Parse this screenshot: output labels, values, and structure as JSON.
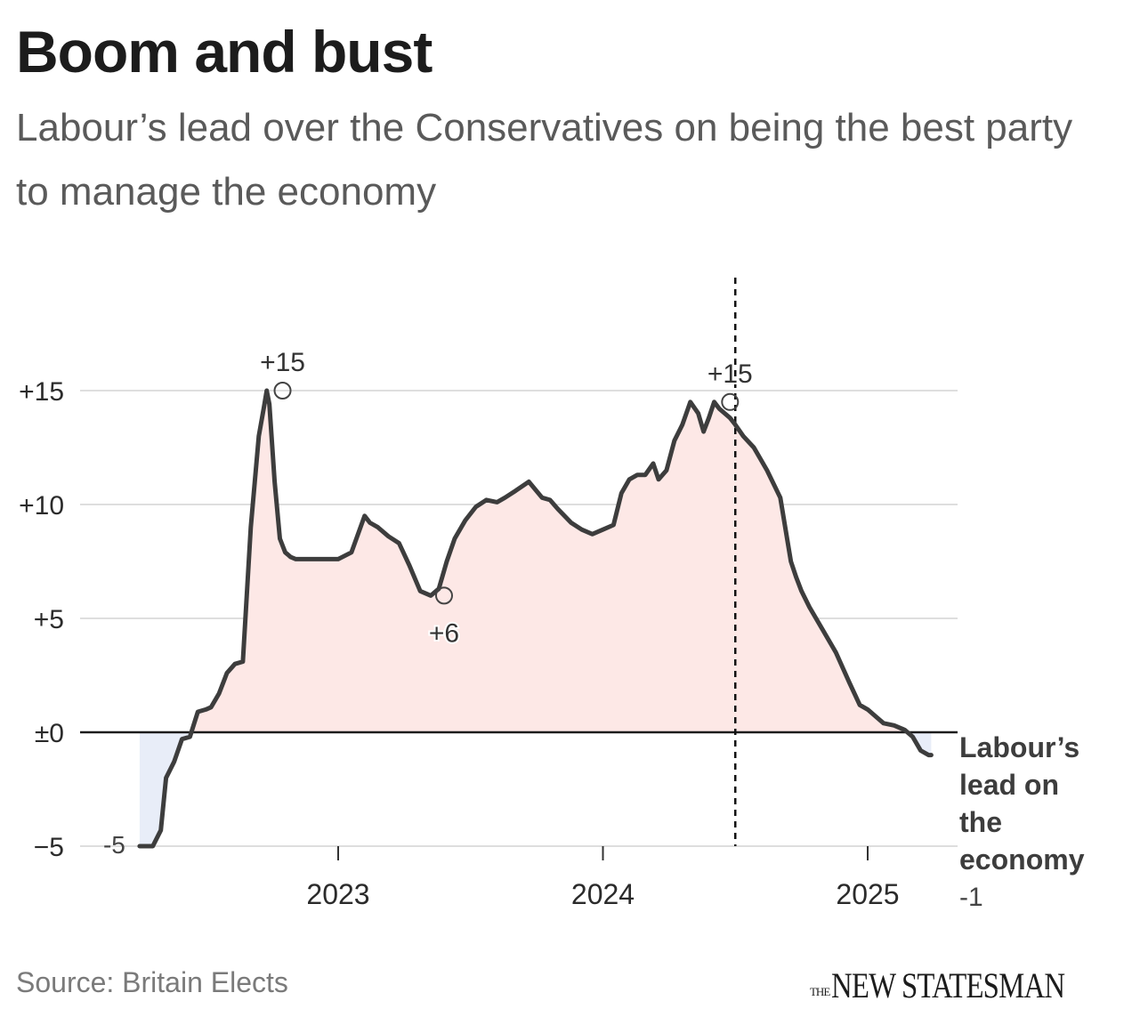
{
  "header": {
    "title": "Boom and bust",
    "subtitle": "Labour’s lead over the Conservatives on being the best party to manage the economy"
  },
  "footer": {
    "source": "Source: Britain Elects",
    "logo_small": "THE",
    "logo_main": "NEW STATESMAN"
  },
  "colors": {
    "line": "#3d3d3d",
    "positive_fill": "#fde8e6",
    "negative_fill": "#e8edf8",
    "grid": "#dedede",
    "zero_line": "#1c1c1c",
    "tick_text": "#2b2b2b"
  },
  "chart_data": {
    "type": "area",
    "title": "Boom and bust",
    "ylabel": "",
    "xlabel": "",
    "ylim": [
      -5,
      20
    ],
    "xlim": [
      2022.2,
      2025.35
    ],
    "y_ticks": [
      {
        "value": 15,
        "label": "+15"
      },
      {
        "value": 10,
        "label": "+10"
      },
      {
        "value": 5,
        "label": "+5"
      },
      {
        "value": 0,
        "label": "±0"
      },
      {
        "value": -5,
        "label": "−5"
      }
    ],
    "x_ticks": [
      {
        "value": 2023.0,
        "label": "2023"
      },
      {
        "value": 2024.0,
        "label": "2024"
      },
      {
        "value": 2025.0,
        "label": "2025"
      }
    ],
    "reference_line": {
      "x": 2024.5
    },
    "series": [
      {
        "name": "Labour’s lead on the economy",
        "end_label": "Labour’s lead on the economy",
        "end_value_label": "-1",
        "start_value_label": "-5",
        "x": [
          2022.25,
          2022.28,
          2022.3,
          2022.33,
          2022.35,
          2022.38,
          2022.41,
          2022.44,
          2022.47,
          2022.5,
          2022.52,
          2022.55,
          2022.58,
          2022.61,
          2022.64,
          2022.67,
          2022.7,
          2022.72,
          2022.73,
          2022.74,
          2022.76,
          2022.78,
          2022.79,
          2022.8,
          2022.81,
          2022.82,
          2022.84,
          2022.87,
          2022.9,
          2022.93,
          2022.97,
          2023.0,
          2023.05,
          2023.1,
          2023.12,
          2023.15,
          2023.19,
          2023.23,
          2023.27,
          2023.31,
          2023.35,
          2023.38,
          2023.41,
          2023.44,
          2023.48,
          2023.52,
          2023.56,
          2023.6,
          2023.63,
          2023.67,
          2023.72,
          2023.77,
          2023.8,
          2023.83,
          2023.88,
          2023.92,
          2023.96,
          2024.0,
          2024.04,
          2024.07,
          2024.1,
          2024.13,
          2024.16,
          2024.19,
          2024.21,
          2024.24,
          2024.27,
          2024.3,
          2024.33,
          2024.36,
          2024.38,
          2024.4,
          2024.42,
          2024.44,
          2024.46,
          2024.48,
          2024.5,
          2024.53,
          2024.57,
          2024.62,
          2024.67,
          2024.71,
          2024.73,
          2024.75,
          2024.78,
          2024.83,
          2024.88,
          2024.93,
          2024.97,
          2025.0,
          2025.03,
          2025.06,
          2025.1,
          2025.14,
          2025.17,
          2025.2,
          2025.23,
          2025.24
        ],
        "values": [
          -5,
          -5,
          -5,
          -4.3,
          -2.0,
          -1.3,
          -0.3,
          -0.2,
          0.9,
          1.0,
          1.1,
          1.7,
          2.6,
          3.0,
          3.1,
          9.0,
          13.0,
          14.3,
          15.0,
          14.4,
          11.0,
          8.5,
          8.2,
          7.9,
          7.8,
          7.7,
          7.6,
          7.6,
          7.6,
          7.6,
          7.6,
          7.6,
          7.9,
          9.5,
          9.2,
          9.0,
          8.6,
          8.3,
          7.3,
          6.2,
          6.0,
          6.3,
          7.5,
          8.5,
          9.3,
          9.9,
          10.2,
          10.1,
          10.3,
          10.6,
          11.0,
          10.3,
          10.2,
          9.8,
          9.2,
          8.9,
          8.7,
          8.9,
          9.1,
          10.5,
          11.1,
          11.3,
          11.3,
          11.8,
          11.1,
          11.5,
          12.8,
          13.5,
          14.5,
          14.0,
          13.2,
          13.8,
          14.5,
          14.2,
          14.0,
          13.8,
          13.5,
          13.0,
          12.5,
          11.5,
          10.3,
          7.5,
          6.8,
          6.2,
          5.5,
          4.5,
          3.5,
          2.2,
          1.2,
          1.0,
          0.7,
          0.4,
          0.3,
          0.1,
          -0.2,
          -0.8,
          -1.0,
          -1.0
        ]
      }
    ],
    "annotations": [
      {
        "x": 2022.79,
        "y": 15,
        "label": "+15",
        "label_position": "above"
      },
      {
        "x": 2023.4,
        "y": 6,
        "label": "+6",
        "label_position": "below"
      },
      {
        "x": 2024.48,
        "y": 14.5,
        "label": "+15",
        "label_position": "above"
      }
    ]
  }
}
